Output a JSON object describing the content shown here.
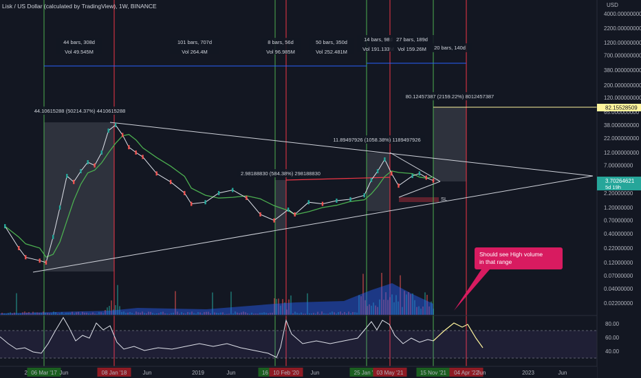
{
  "header": {
    "title": "Lisk / US Dollar (calculated by TradingView), 1W, BINANCE"
  },
  "chart_data": {
    "type": "line",
    "title": "Lisk / US Dollar (calculated by TradingView), 1W, BINANCE",
    "yscale": "log",
    "y_unit": "USD",
    "y_ticks": [
      "4000.00000000",
      "2200.00000000",
      "1200.00000000",
      "700.000000000",
      "380.000000000",
      "200.000000000",
      "120.000000000",
      "65.000000000",
      "38.000000000",
      "22.000000000",
      "12.000000000",
      "7.00000000",
      "3.70000000",
      "2.20000000",
      "1.20000000",
      "0.70000000",
      "0.40000000",
      "0.22000000",
      "0.12000000",
      "0.07000000",
      "0.04000000",
      "0.02200000"
    ],
    "x_ticks": [
      "20",
      "06 Mar '17",
      "Jun",
      "08 Jan '18",
      "Jun",
      "2019",
      "Jun",
      "16 Dec '19",
      "10 Feb '20",
      "Jun",
      "25 Jan '21",
      "03 May '21",
      "15 Nov '21",
      "04 Apr '22",
      "Jun",
      "2023",
      "Jun"
    ],
    "x_ticks_highlight": [
      "06 Mar '17",
      "08 Jan '18",
      "16 Dec '19",
      "10 Feb '20",
      "25 Jan '21",
      "03 May '21",
      "15 Nov '21",
      "04 Apr '22"
    ],
    "current_price": "3.70264621",
    "current_price_sub": "5d 19h",
    "target_price": "82.15528509",
    "price_series": [
      {
        "date": "2016-09",
        "close": 0.55
      },
      {
        "date": "2016-11",
        "close": 0.22
      },
      {
        "date": "2016-12",
        "close": 0.15
      },
      {
        "date": "2017-02",
        "close": 0.13
      },
      {
        "date": "2017-03",
        "close": 0.12
      },
      {
        "date": "2017-04",
        "close": 0.35
      },
      {
        "date": "2017-05",
        "close": 1.2
      },
      {
        "date": "2017-06",
        "close": 4.5
      },
      {
        "date": "2017-07",
        "close": 3.5
      },
      {
        "date": "2017-08",
        "close": 5.5
      },
      {
        "date": "2017-09",
        "close": 8.0
      },
      {
        "date": "2017-10",
        "close": 7.0
      },
      {
        "date": "2017-11",
        "close": 12.0
      },
      {
        "date": "2017-12",
        "close": 30.0
      },
      {
        "date": "2018-01",
        "close": 38.0
      },
      {
        "date": "2018-02",
        "close": 25.0
      },
      {
        "date": "2018-03",
        "close": 15.0
      },
      {
        "date": "2018-04",
        "close": 12.0
      },
      {
        "date": "2018-05",
        "close": 10.0
      },
      {
        "date": "2018-07",
        "close": 5.0
      },
      {
        "date": "2018-09",
        "close": 3.5
      },
      {
        "date": "2018-11",
        "close": 2.2
      },
      {
        "date": "2018-12",
        "close": 1.4
      },
      {
        "date": "2019-02",
        "close": 1.5
      },
      {
        "date": "2019-04",
        "close": 2.2
      },
      {
        "date": "2019-06",
        "close": 2.5
      },
      {
        "date": "2019-08",
        "close": 1.8
      },
      {
        "date": "2019-10",
        "close": 0.9
      },
      {
        "date": "2019-12",
        "close": 0.7
      },
      {
        "date": "2020-02",
        "close": 1.1
      },
      {
        "date": "2020-03",
        "close": 0.9
      },
      {
        "date": "2020-05",
        "close": 1.5
      },
      {
        "date": "2020-07",
        "close": 1.4
      },
      {
        "date": "2020-09",
        "close": 1.6
      },
      {
        "date": "2020-11",
        "close": 1.7
      },
      {
        "date": "2021-01",
        "close": 2.0
      },
      {
        "date": "2021-02",
        "close": 3.8
      },
      {
        "date": "2021-03",
        "close": 5.5
      },
      {
        "date": "2021-04",
        "close": 9.0
      },
      {
        "date": "2021-05",
        "close": 5.0
      },
      {
        "date": "2021-06",
        "close": 3.0
      },
      {
        "date": "2021-08",
        "close": 4.5
      },
      {
        "date": "2021-09",
        "close": 5.0
      },
      {
        "date": "2021-10",
        "close": 4.2
      },
      {
        "date": "2021-11",
        "close": 3.7
      }
    ],
    "measurements": [
      {
        "label1": "44 bars, 308d",
        "label2": "Vol 49.545M"
      },
      {
        "label1": "101 bars, 707d",
        "label2": "Vol 264.4M"
      },
      {
        "label1": "8 bars, 56d",
        "label2": "Vol 96.985M"
      },
      {
        "label1": "50 bars, 350d",
        "label2": "Vol 252.481M"
      },
      {
        "label1": "14 bars, 98d",
        "label2": "Vol 191.133M"
      },
      {
        "label1": "27 bars, 189d",
        "label2": "Vol 159.26M"
      },
      {
        "label1": "20 bars, 140d",
        "label2": ""
      }
    ],
    "range_labels": [
      "44.10615288 (50214.37%) 4410615288",
      "2.98188830 (584.38%) 298188830",
      "11.89497926 (1058.38%) 1189497926",
      "80.12457387 (2159.22%) 8012457387"
    ],
    "sl_label": "SL",
    "annotation": "Should see High volume in that range",
    "rsi_ticks": [
      "80.00",
      "60.00",
      "40.00"
    ],
    "colors": {
      "background": "#131722",
      "green_line": "#4caf50",
      "red_line": "#f23645",
      "ma": "#4caf50",
      "volume": "#2962ff",
      "annotation": "#d81b60",
      "target": "#fff59d"
    }
  }
}
